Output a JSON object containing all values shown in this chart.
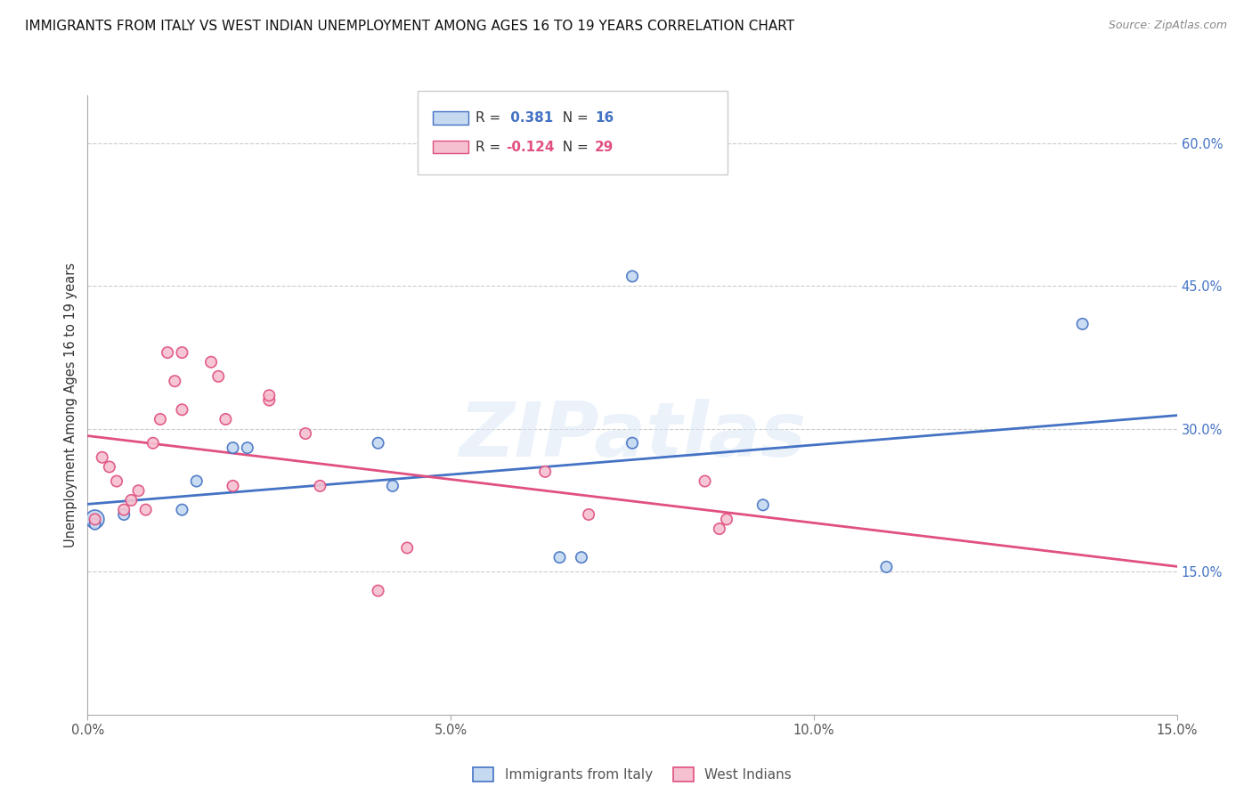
{
  "title": "IMMIGRANTS FROM ITALY VS WEST INDIAN UNEMPLOYMENT AMONG AGES 16 TO 19 YEARS CORRELATION CHART",
  "source": "Source: ZipAtlas.com",
  "ylabel": "Unemployment Among Ages 16 to 19 years",
  "xmin": 0.0,
  "xmax": 0.15,
  "ymin": 0.0,
  "ymax": 0.65,
  "italy_color": "#c5d9f0",
  "italy_edge_color": "#4472c4",
  "italy_line_color": "#4472c4",
  "westindian_color": "#f5c0d0",
  "westindian_edge_color": "#e05080",
  "westindian_line_color": "#e05080",
  "r_italy": "0.381",
  "n_italy": "16",
  "r_westindian": "-0.124",
  "n_westindian": "29",
  "legend_italy": "Immigrants from Italy",
  "legend_westindian": "West Indians",
  "watermark": "ZIPatlas",
  "italy_x": [
    0.001,
    0.001,
    0.005,
    0.013,
    0.015,
    0.02,
    0.022,
    0.042,
    0.065,
    0.075,
    0.093,
    0.11,
    0.137,
    0.068,
    0.04,
    0.075
  ],
  "italy_y": [
    0.205,
    0.2,
    0.21,
    0.215,
    0.245,
    0.28,
    0.28,
    0.24,
    0.165,
    0.285,
    0.22,
    0.155,
    0.41,
    0.165,
    0.285,
    0.46
  ],
  "italy_sizes": [
    220,
    80,
    80,
    80,
    80,
    80,
    80,
    80,
    80,
    80,
    80,
    80,
    80,
    80,
    80,
    80
  ],
  "westindian_x": [
    0.001,
    0.002,
    0.003,
    0.004,
    0.005,
    0.006,
    0.007,
    0.008,
    0.009,
    0.01,
    0.011,
    0.012,
    0.013,
    0.013,
    0.017,
    0.018,
    0.019,
    0.02,
    0.025,
    0.025,
    0.03,
    0.032,
    0.04,
    0.044,
    0.063,
    0.069,
    0.085,
    0.087,
    0.088
  ],
  "westindian_y": [
    0.205,
    0.27,
    0.26,
    0.245,
    0.215,
    0.225,
    0.235,
    0.215,
    0.285,
    0.31,
    0.38,
    0.35,
    0.32,
    0.38,
    0.37,
    0.355,
    0.31,
    0.24,
    0.33,
    0.335,
    0.295,
    0.24,
    0.13,
    0.175,
    0.255,
    0.21,
    0.245,
    0.195,
    0.205
  ],
  "westindian_sizes": [
    80,
    80,
    80,
    80,
    80,
    80,
    80,
    80,
    80,
    80,
    80,
    80,
    80,
    80,
    80,
    80,
    80,
    80,
    80,
    80,
    80,
    80,
    80,
    80,
    80,
    80,
    80,
    80,
    80
  ],
  "yticks": [
    0.0,
    0.15,
    0.3,
    0.45,
    0.6
  ],
  "xticks": [
    0.0,
    0.05,
    0.1,
    0.15
  ],
  "background_color": "#ffffff",
  "grid_color": "#cccccc"
}
